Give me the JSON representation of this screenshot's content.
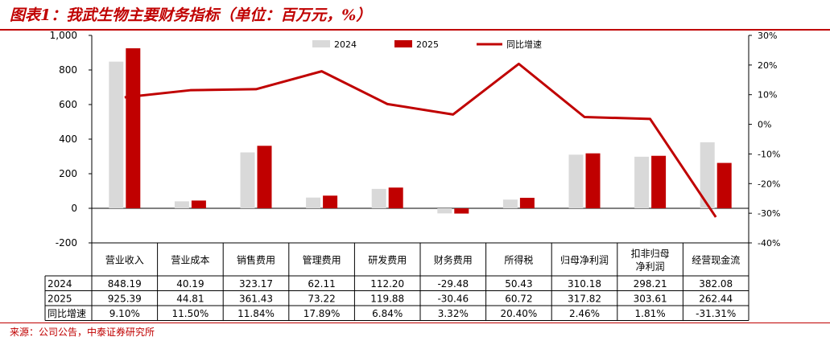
{
  "title": "图表1：我武生物主要财务指标（单位：百万元，%）",
  "source": "来源：公司公告，中泰证券研究所",
  "colors": {
    "s2024": "#d9d9d9",
    "s2025": "#c00000",
    "growth": "#c00000",
    "accent": "#c00000"
  },
  "chart_data": {
    "type": "bar",
    "categories": [
      "营业收入",
      "营业成本",
      "销售费用",
      "管理费用",
      "研发费用",
      "财务费用",
      "所得税",
      "归母净利润",
      "扣非归母\n净利润",
      "经营现金流"
    ],
    "series": [
      {
        "name": "2024",
        "kind": "bar",
        "axis": "left",
        "values": [
          848.19,
          40.19,
          323.17,
          62.11,
          112.2,
          -29.48,
          50.43,
          310.18,
          298.21,
          382.08
        ],
        "labels": [
          "848.19",
          "40.19",
          "323.17",
          "62.11",
          "112.20",
          "-29.48",
          "50.43",
          "310.18",
          "298.21",
          "382.08"
        ]
      },
      {
        "name": "2025",
        "kind": "bar",
        "axis": "left",
        "values": [
          925.39,
          44.81,
          361.43,
          73.22,
          119.88,
          -30.46,
          60.72,
          317.82,
          303.61,
          262.44
        ],
        "labels": [
          "925.39",
          "44.81",
          "361.43",
          "73.22",
          "119.88",
          "-30.46",
          "60.72",
          "317.82",
          "303.61",
          "262.44"
        ]
      },
      {
        "name": "同比增速",
        "kind": "line",
        "axis": "right",
        "values": [
          9.1,
          11.5,
          11.84,
          17.89,
          6.84,
          3.32,
          20.4,
          2.46,
          1.81,
          -31.31
        ],
        "labels": [
          "9.10%",
          "11.50%",
          "11.84%",
          "17.89%",
          "6.84%",
          "3.32%",
          "20.40%",
          "2.46%",
          "1.81%",
          "-31.31%"
        ]
      }
    ],
    "table_row_labels": [
      "2024",
      "2025",
      "同比增速"
    ],
    "y_left": {
      "min": -200,
      "max": 1000,
      "ticks": [
        -200,
        0,
        200,
        400,
        600,
        800,
        1000
      ],
      "tick_labels": [
        "-200",
        "0",
        "200",
        "400",
        "600",
        "800",
        "1,000"
      ]
    },
    "y_right": {
      "min": -40,
      "max": 30,
      "ticks": [
        -40,
        -30,
        -20,
        -10,
        0,
        10,
        20,
        30
      ],
      "tick_labels": [
        "-40%",
        "-30%",
        "-20%",
        "-10%",
        "0%",
        "10%",
        "20%",
        "30%"
      ]
    },
    "legend_position": "top-center",
    "grid": false
  }
}
